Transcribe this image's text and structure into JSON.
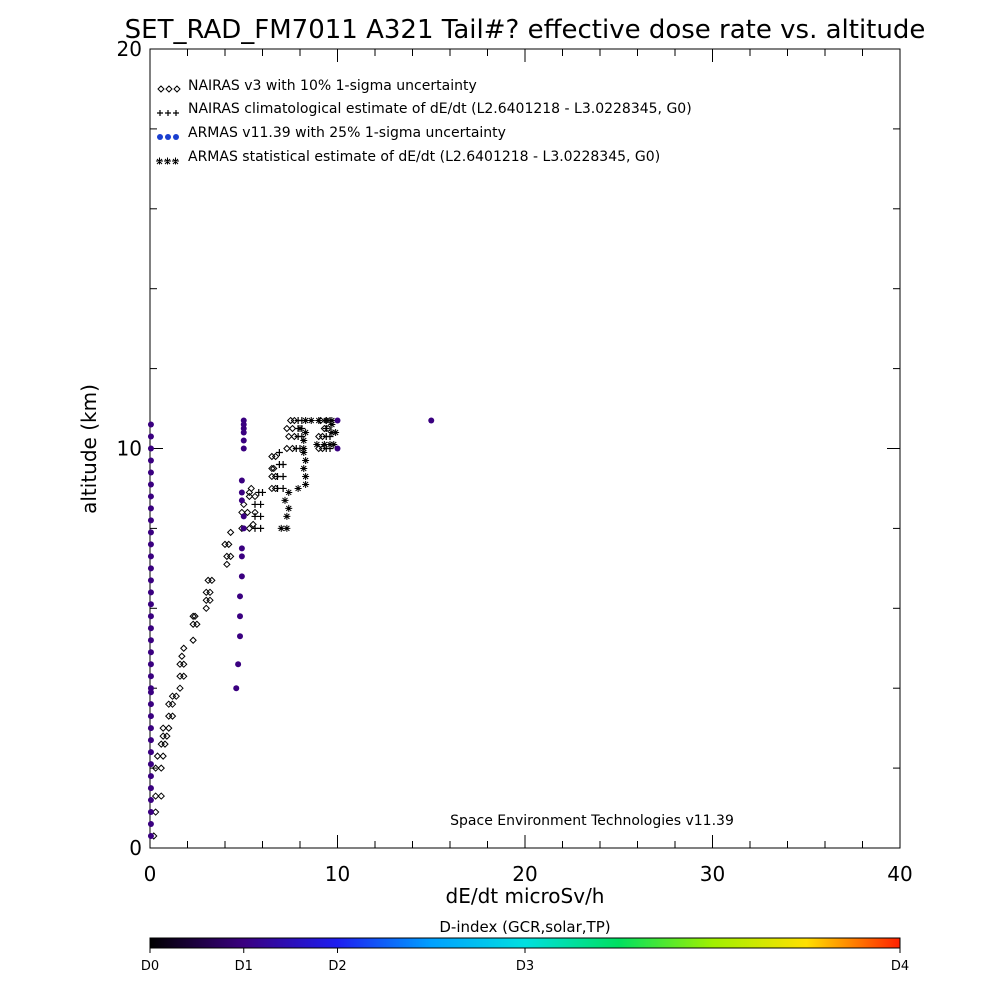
{
  "chart_data": {
    "type": "scatter",
    "title": "SET_RAD_FM7011  A321 Tail#? effective dose rate vs. altitude",
    "xlabel": "dE/dt microSv/h",
    "ylabel": "altitude (km)",
    "xlim": [
      0,
      40
    ],
    "ylim": [
      0,
      20
    ],
    "x_ticks": [
      "0",
      "10",
      "20",
      "30",
      "40"
    ],
    "y_ticks": [
      "0",
      "10",
      "20"
    ],
    "grid": false,
    "legend_position": "top-left",
    "legend": [
      {
        "label": "NAIRAS v3 with 10% 1-sigma uncertainty",
        "marker": "diamond",
        "color": "#000000"
      },
      {
        "label": "NAIRAS climatological estimate of dE/dt (L2.6401218 - L3.0228345, G0)",
        "marker": "plus",
        "color": "#000000"
      },
      {
        "label": "ARMAS v11.39 with 25% 1-sigma uncertainty",
        "marker": "dot",
        "color": "#1a3fd0"
      },
      {
        "label": "ARMAS statistical estimate of dE/dt (L2.6401218 - L3.0228345, G0)",
        "marker": "asterisk",
        "color": "#000000"
      }
    ],
    "annotation": "Space Environment Technologies v11.39",
    "colorbar": {
      "title": "D-index (GCR,solar,TP)",
      "labels": [
        {
          "text": "D0",
          "pos": 0.0
        },
        {
          "text": "D1",
          "pos": 0.125
        },
        {
          "text": "D2",
          "pos": 0.25
        },
        {
          "text": "D3",
          "pos": 0.5
        },
        {
          "text": "D4",
          "pos": 1.0
        }
      ],
      "stops": [
        "#000000",
        "#3a0080",
        "#1e1ef0",
        "#00a0ff",
        "#00e0e0",
        "#00e060",
        "#a0f000",
        "#ffe000",
        "#ff2000"
      ]
    },
    "series": [
      {
        "name": "NAIRAS v3 with 10% 1-sigma uncertainty",
        "marker": "diamond",
        "color": "#000000",
        "points": [
          [
            0.2,
            0.3
          ],
          [
            0.3,
            0.9
          ],
          [
            0.3,
            1.3
          ],
          [
            0.6,
            1.3
          ],
          [
            0.3,
            2.0
          ],
          [
            0.6,
            2.0
          ],
          [
            0.4,
            2.3
          ],
          [
            0.7,
            2.3
          ],
          [
            0.6,
            2.6
          ],
          [
            0.8,
            2.6
          ],
          [
            0.7,
            2.8
          ],
          [
            0.9,
            2.8
          ],
          [
            0.7,
            3.0
          ],
          [
            1.0,
            3.0
          ],
          [
            1.0,
            3.3
          ],
          [
            1.2,
            3.3
          ],
          [
            1.0,
            3.6
          ],
          [
            1.2,
            3.6
          ],
          [
            1.2,
            3.8
          ],
          [
            1.4,
            3.8
          ],
          [
            1.6,
            4.0
          ],
          [
            1.6,
            4.3
          ],
          [
            1.8,
            4.3
          ],
          [
            1.6,
            4.6
          ],
          [
            1.8,
            4.6
          ],
          [
            1.7,
            4.8
          ],
          [
            1.8,
            5.0
          ],
          [
            2.3,
            5.2
          ],
          [
            2.3,
            5.6
          ],
          [
            2.5,
            5.6
          ],
          [
            2.3,
            5.8
          ],
          [
            2.4,
            5.8
          ],
          [
            3.0,
            6.0
          ],
          [
            3.0,
            6.2
          ],
          [
            3.2,
            6.2
          ],
          [
            3.0,
            6.4
          ],
          [
            3.2,
            6.4
          ],
          [
            3.1,
            6.7
          ],
          [
            3.3,
            6.7
          ],
          [
            4.1,
            7.1
          ],
          [
            4.1,
            7.3
          ],
          [
            4.3,
            7.3
          ],
          [
            4.0,
            7.6
          ],
          [
            4.2,
            7.6
          ],
          [
            4.3,
            7.9
          ],
          [
            4.9,
            8.0
          ],
          [
            5.3,
            8.0
          ],
          [
            5.5,
            8.1
          ],
          [
            4.9,
            8.4
          ],
          [
            5.2,
            8.4
          ],
          [
            5.6,
            8.4
          ],
          [
            5.0,
            8.6
          ],
          [
            5.3,
            8.8
          ],
          [
            5.6,
            8.8
          ],
          [
            5.3,
            8.9
          ],
          [
            5.4,
            9.0
          ],
          [
            6.5,
            9.0
          ],
          [
            6.7,
            9.0
          ],
          [
            6.5,
            9.3
          ],
          [
            6.7,
            9.3
          ],
          [
            6.5,
            9.5
          ],
          [
            6.6,
            9.5
          ],
          [
            6.5,
            9.8
          ],
          [
            6.7,
            9.8
          ],
          [
            7.3,
            10.0
          ],
          [
            7.6,
            10.0
          ],
          [
            7.4,
            10.3
          ],
          [
            7.7,
            10.3
          ],
          [
            7.3,
            10.5
          ],
          [
            7.6,
            10.5
          ],
          [
            7.5,
            10.7
          ],
          [
            7.7,
            10.7
          ],
          [
            9.0,
            10.0
          ],
          [
            9.2,
            10.0
          ],
          [
            9.0,
            10.3
          ],
          [
            9.2,
            10.3
          ],
          [
            9.3,
            10.5
          ],
          [
            9.5,
            10.5
          ],
          [
            9.1,
            10.7
          ],
          [
            9.4,
            10.7
          ]
        ]
      },
      {
        "name": "NAIRAS climatological estimate of dE/dt (L2.6401218 - L3.0228345, G0)",
        "marker": "plus",
        "color": "#000000",
        "points": [
          [
            5.6,
            8.0
          ],
          [
            5.9,
            8.0
          ],
          [
            5.6,
            8.3
          ],
          [
            5.9,
            8.3
          ],
          [
            5.6,
            8.6
          ],
          [
            5.9,
            8.6
          ],
          [
            5.8,
            8.9
          ],
          [
            6.0,
            8.9
          ],
          [
            6.8,
            9.0
          ],
          [
            7.1,
            9.0
          ],
          [
            6.8,
            9.3
          ],
          [
            7.1,
            9.3
          ],
          [
            6.9,
            9.6
          ],
          [
            7.1,
            9.6
          ],
          [
            6.9,
            9.9
          ],
          [
            7.8,
            10.0
          ],
          [
            8.0,
            10.0
          ],
          [
            7.9,
            10.3
          ],
          [
            8.1,
            10.3
          ],
          [
            7.9,
            10.5
          ],
          [
            8.1,
            10.5
          ],
          [
            7.9,
            10.7
          ],
          [
            8.1,
            10.7
          ],
          [
            9.4,
            10.0
          ],
          [
            9.6,
            10.0
          ],
          [
            9.4,
            10.3
          ],
          [
            9.6,
            10.3
          ],
          [
            9.4,
            10.5
          ],
          [
            9.6,
            10.7
          ]
        ]
      },
      {
        "name": "ARMAS statistical estimate of dE/dt (L2.6401218 - L3.0228345, G0)",
        "marker": "asterisk",
        "color": "#000000",
        "points": [
          [
            7.0,
            8.0
          ],
          [
            7.3,
            8.0
          ],
          [
            7.3,
            8.3
          ],
          [
            7.4,
            8.5
          ],
          [
            7.2,
            8.7
          ],
          [
            7.4,
            8.9
          ],
          [
            7.9,
            9.0
          ],
          [
            8.3,
            9.1
          ],
          [
            8.3,
            9.3
          ],
          [
            8.2,
            9.5
          ],
          [
            8.3,
            9.7
          ],
          [
            8.2,
            9.9
          ],
          [
            8.2,
            10.0
          ],
          [
            8.2,
            10.2
          ],
          [
            8.3,
            10.4
          ],
          [
            8.0,
            10.5
          ],
          [
            8.3,
            10.7
          ],
          [
            8.6,
            10.7
          ],
          [
            8.9,
            10.1
          ],
          [
            9.3,
            10.1
          ],
          [
            9.6,
            10.1
          ],
          [
            9.8,
            10.1
          ],
          [
            9.7,
            10.4
          ],
          [
            9.9,
            10.4
          ],
          [
            9.7,
            10.6
          ],
          [
            9.0,
            10.7
          ],
          [
            9.4,
            10.7
          ],
          [
            9.7,
            10.7
          ]
        ]
      },
      {
        "name": "ARMAS v11.39 with 25% 1-sigma uncertainty",
        "marker": "dot",
        "color": "#3a0080",
        "points": [
          [
            0.05,
            0.3
          ],
          [
            0.05,
            0.6
          ],
          [
            0.05,
            0.9
          ],
          [
            0.05,
            1.2
          ],
          [
            0.05,
            1.5
          ],
          [
            0.05,
            1.8
          ],
          [
            0.05,
            2.1
          ],
          [
            0.05,
            2.4
          ],
          [
            0.05,
            2.7
          ],
          [
            0.05,
            3.0
          ],
          [
            0.05,
            3.3
          ],
          [
            0.05,
            3.6
          ],
          [
            0.05,
            3.9
          ],
          [
            0.05,
            4.0
          ],
          [
            0.05,
            4.3
          ],
          [
            0.05,
            4.6
          ],
          [
            0.05,
            4.9
          ],
          [
            0.05,
            5.2
          ],
          [
            0.05,
            5.5
          ],
          [
            0.05,
            5.8
          ],
          [
            0.05,
            6.1
          ],
          [
            0.05,
            6.4
          ],
          [
            0.05,
            6.7
          ],
          [
            0.05,
            7.0
          ],
          [
            0.05,
            7.3
          ],
          [
            0.05,
            7.6
          ],
          [
            0.05,
            7.9
          ],
          [
            0.05,
            8.2
          ],
          [
            0.05,
            8.5
          ],
          [
            0.05,
            8.8
          ],
          [
            0.05,
            9.1
          ],
          [
            0.05,
            9.4
          ],
          [
            0.05,
            9.7
          ],
          [
            0.05,
            10.0
          ],
          [
            0.05,
            10.3
          ],
          [
            0.05,
            10.6
          ],
          [
            4.6,
            4.0
          ],
          [
            4.7,
            4.6
          ],
          [
            4.8,
            5.3
          ],
          [
            4.8,
            5.8
          ],
          [
            4.8,
            6.3
          ],
          [
            4.9,
            6.8
          ],
          [
            4.9,
            7.3
          ],
          [
            4.9,
            7.5
          ],
          [
            5.0,
            8.0
          ],
          [
            5.0,
            8.3
          ],
          [
            4.9,
            8.7
          ],
          [
            4.9,
            8.9
          ],
          [
            4.9,
            9.2
          ],
          [
            5.0,
            10.0
          ],
          [
            5.0,
            10.2
          ],
          [
            5.0,
            10.4
          ],
          [
            5.0,
            10.5
          ],
          [
            5.0,
            10.6
          ],
          [
            5.0,
            10.7
          ],
          [
            10.0,
            10.0
          ],
          [
            10.0,
            10.7
          ],
          [
            15.0,
            10.7
          ]
        ]
      }
    ]
  }
}
